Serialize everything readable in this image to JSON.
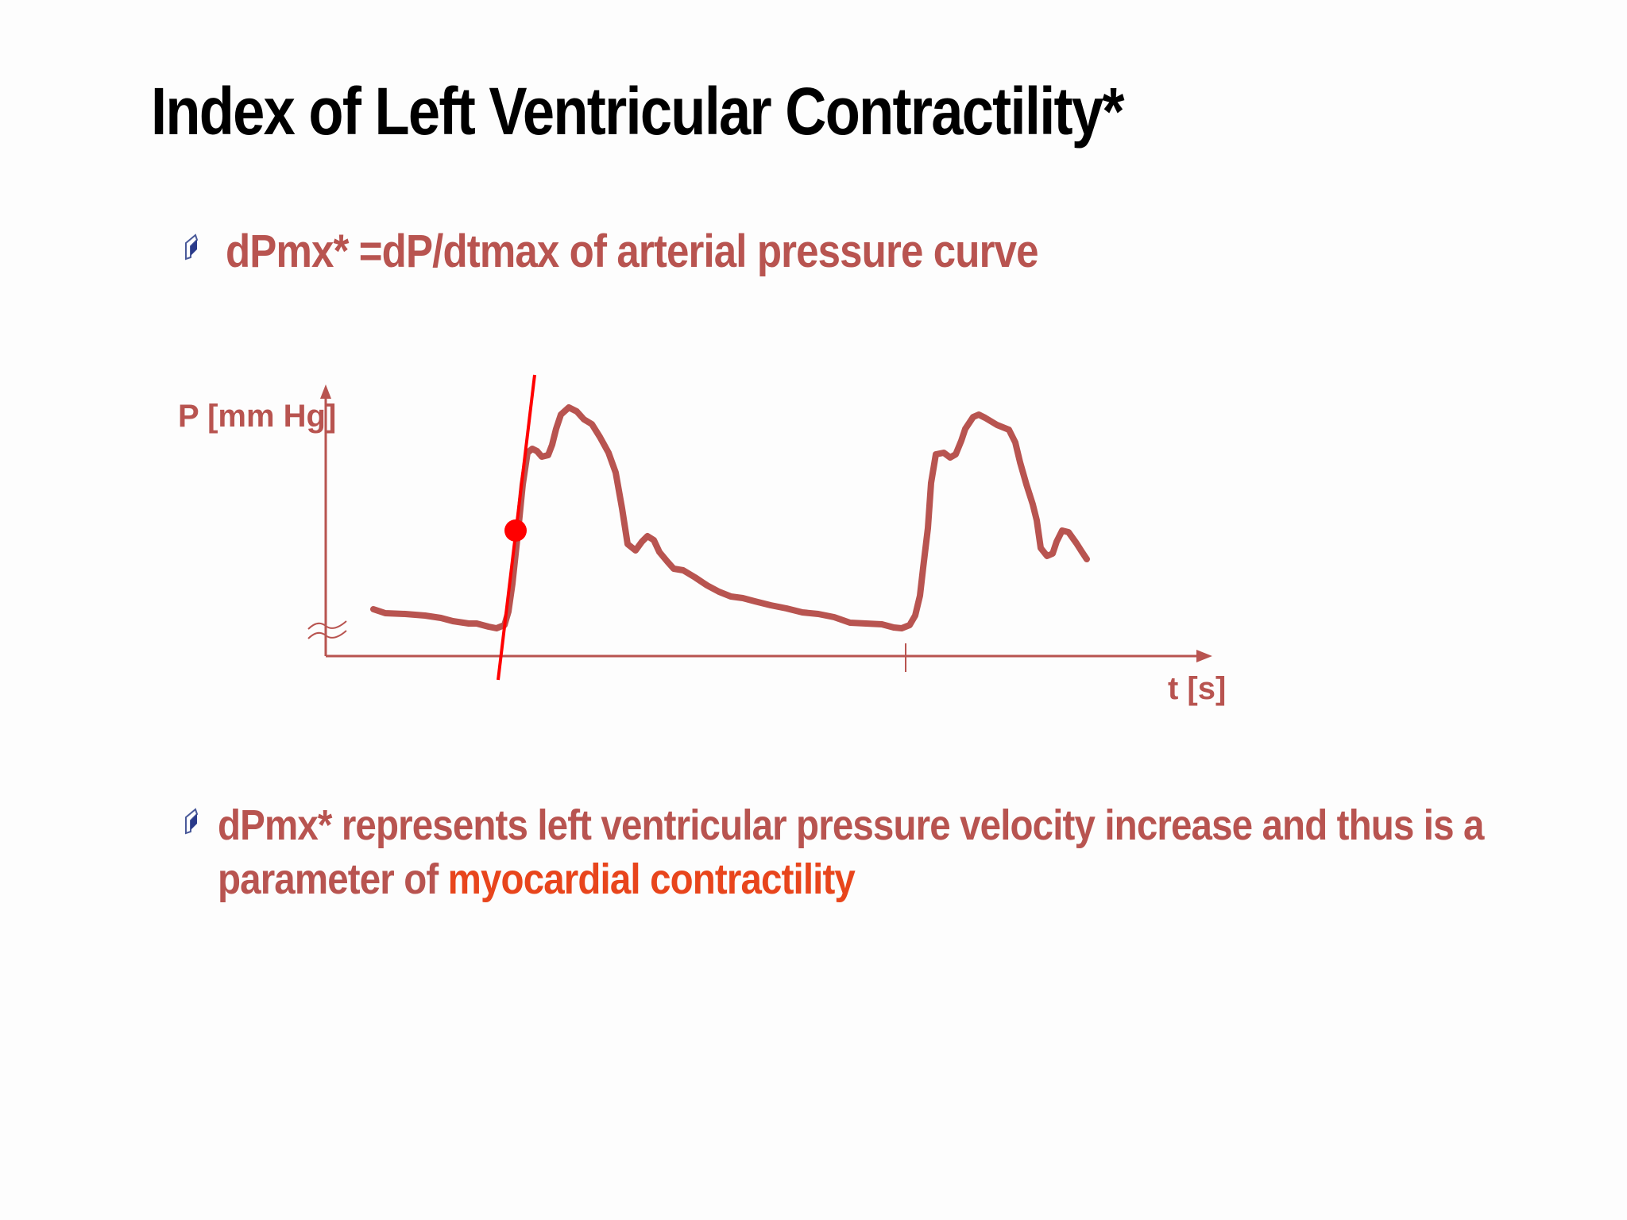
{
  "slide": {
    "title": "Index of Left Ventricular Contractility*",
    "bullets": [
      {
        "text": "dPmx* =dP/dtmax of arterial pressure curve",
        "icon": "bullet-pen-icon"
      },
      {
        "text_line1": "dPmx* represents left ventricular pressure velocity increase and thus is a",
        "text_line2_prefix": "parameter of ",
        "text_line2_highlight": "myocardial contractility",
        "icon": "bullet-pen-icon"
      }
    ],
    "colors": {
      "text": "#b85450",
      "highlight": "#e8451c",
      "tangent": "#ff0000",
      "title": "#000000"
    }
  },
  "chart_data": {
    "type": "line",
    "ylabel": "P [mm Hg]",
    "xlabel": "t [s]",
    "grid": false,
    "y_axis_break": true,
    "tick_marks_x": 1,
    "series": [
      {
        "values_description_free": true
      }
    ],
    "annotations": {
      "tangent_line": true,
      "max_slope_point": true
    }
  }
}
